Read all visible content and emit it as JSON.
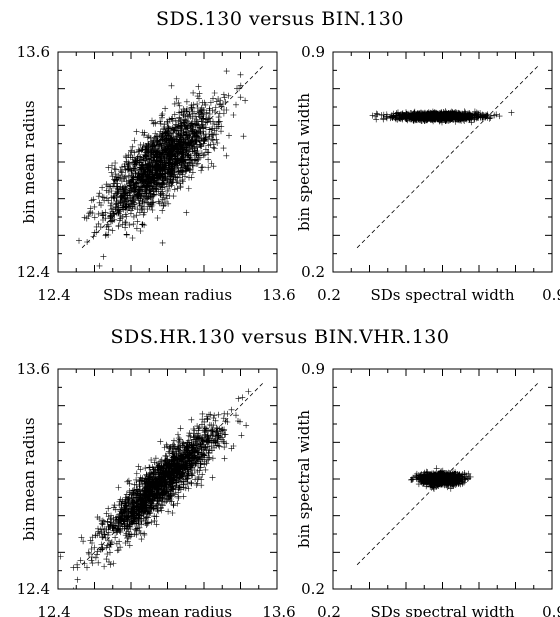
{
  "titles": {
    "top": "SDS.130 versus BIN.130",
    "bottom": "SDS.HR.130 versus BIN.VHR.130"
  },
  "colors": {
    "ink": "#000000",
    "background": "#ffffff"
  },
  "chart_data": [
    {
      "type": "scatter",
      "xlabel": "SDs mean radius",
      "ylabel": "bin mean radius",
      "xlim": [
        12.4,
        13.6
      ],
      "ylim": [
        12.4,
        13.6
      ],
      "xticks": [
        "12.4",
        "13.6"
      ],
      "yticks": [
        "12.4",
        "13.6"
      ],
      "marker": "+",
      "reference_line": "y = x (dashed)",
      "cloud": {
        "center": [
          12.97,
          13.0
        ],
        "spread_along_diagonal": 0.2,
        "spread_across": 0.075,
        "n_points": 1800
      }
    },
    {
      "type": "scatter",
      "xlabel": "SDs spectral width",
      "ylabel": "bin spectral width",
      "xlim": [
        0.2,
        0.9
      ],
      "ylim": [
        0.2,
        0.9
      ],
      "xticks": [
        "0.2",
        "0.9"
      ],
      "yticks": [
        "0.2",
        "0.9"
      ],
      "marker": "+",
      "reference_line": "y = x (dashed)",
      "cloud": {
        "center": [
          0.535,
          0.695
        ],
        "spread_x": 0.065,
        "spread_y": 0.0055,
        "n_points": 1400
      }
    },
    {
      "type": "scatter",
      "xlabel": "SDs mean radius",
      "ylabel": "bin mean radius",
      "xlim": [
        12.4,
        13.6
      ],
      "ylim": [
        12.4,
        13.6
      ],
      "xticks": [
        "12.4",
        "13.6"
      ],
      "yticks": [
        "12.4",
        "13.6"
      ],
      "marker": "+",
      "reference_line": "y = x (dashed)",
      "cloud": {
        "center": [
          12.97,
          12.98
        ],
        "spread_along_diagonal": 0.21,
        "spread_across": 0.05,
        "n_points": 1800
      }
    },
    {
      "type": "scatter",
      "xlabel": "SDs spectral width",
      "ylabel": "bin spectral width",
      "xlim": [
        0.2,
        0.9
      ],
      "ylim": [
        0.2,
        0.9
      ],
      "xticks": [
        "0.2",
        "0.9"
      ],
      "yticks": [
        "0.2",
        "0.9"
      ],
      "marker": "+",
      "reference_line": "y = x (dashed)",
      "cloud": {
        "center": [
          0.545,
          0.55
        ],
        "spread_x": 0.032,
        "spread_y": 0.009,
        "n_points": 1200
      }
    }
  ]
}
